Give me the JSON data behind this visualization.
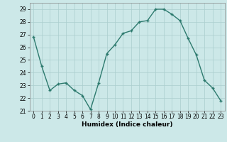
{
  "x": [
    0,
    1,
    2,
    3,
    4,
    5,
    6,
    7,
    8,
    9,
    10,
    11,
    12,
    13,
    14,
    15,
    16,
    17,
    18,
    19,
    20,
    21,
    22,
    23
  ],
  "y": [
    26.8,
    24.5,
    22.6,
    23.1,
    23.2,
    22.6,
    22.2,
    21.1,
    23.2,
    25.5,
    26.2,
    27.1,
    27.3,
    28.0,
    28.1,
    29.0,
    29.0,
    28.6,
    28.1,
    26.7,
    25.4,
    23.4,
    22.8,
    21.8
  ],
  "xlabel": "Humidex (Indice chaleur)",
  "ylim": [
    21,
    29.5
  ],
  "yticks": [
    21,
    22,
    23,
    24,
    25,
    26,
    27,
    28,
    29
  ],
  "xticks": [
    0,
    1,
    2,
    3,
    4,
    5,
    6,
    7,
    8,
    9,
    10,
    11,
    12,
    13,
    14,
    15,
    16,
    17,
    18,
    19,
    20,
    21,
    22,
    23
  ],
  "line_color": "#2d7a6e",
  "marker": "+",
  "marker_size": 3.5,
  "bg_color": "#cce8e8",
  "grid_color": "#aacece",
  "line_width": 1.0,
  "tick_fontsize": 5.5,
  "xlabel_fontsize": 6.5
}
